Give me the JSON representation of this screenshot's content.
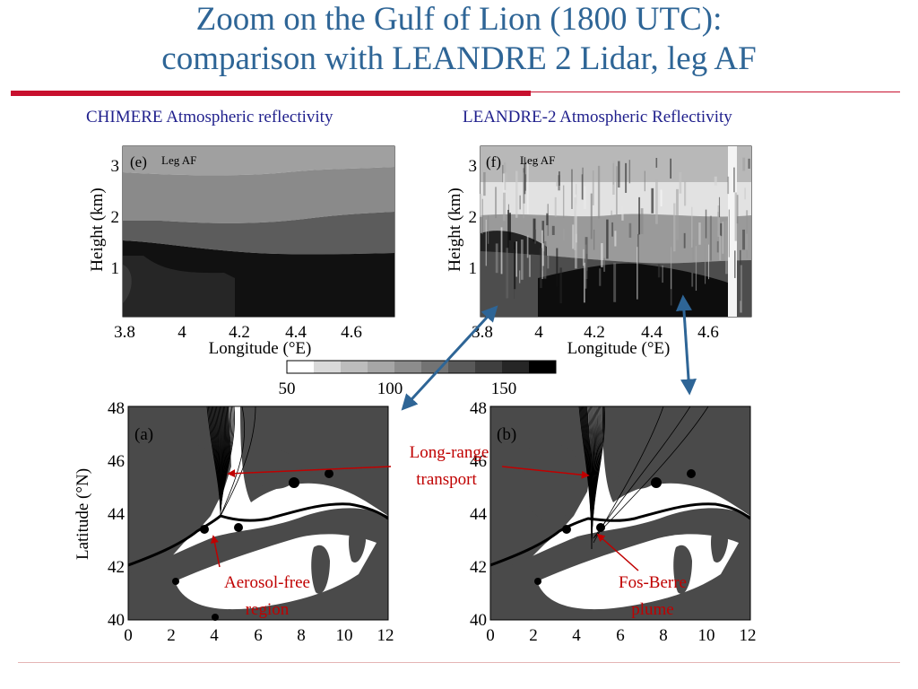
{
  "slide": {
    "title_line1": "Zoom on the Gulf of Lion (1800 UTC):",
    "title_line2": "comparison with LEANDRE 2 Lidar, leg AF"
  },
  "captions": {
    "left": "CHIMERE Atmospheric reflectivity",
    "right": "LEANDRE-2 Atmospheric Reflectivity"
  },
  "sections": {
    "panel_e": {
      "label": "(e)",
      "leg": "Leg AF",
      "y_axis_label": "Height (km)",
      "y_ticks": [
        "1",
        "2",
        "3"
      ],
      "x_axis_label": "Longitude (°E)",
      "x_ticks": [
        "3.8",
        "4",
        "4.2",
        "4.4",
        "4.6"
      ]
    },
    "panel_f": {
      "label": "(f)",
      "leg": "Leg AF",
      "y_axis_label": "Height (km)",
      "y_ticks": [
        "1",
        "2",
        "3"
      ],
      "x_axis_label": "Longitude (°E)",
      "x_ticks": [
        "3.8",
        "4",
        "4.2",
        "4.4",
        "4.6"
      ]
    },
    "colorbar": {
      "tick_labels": [
        "50",
        "100",
        "150"
      ],
      "shades": [
        "#ffffff",
        "#d9d9d9",
        "#bdbdbd",
        "#a6a6a6",
        "#8c8c8c",
        "#737373",
        "#595959",
        "#3f3f3f",
        "#262626",
        "#000000"
      ]
    },
    "panel_a": {
      "label": "(a)",
      "y_axis_label": "Latitude (°N)",
      "y_ticks": [
        "40",
        "42",
        "44",
        "46",
        "48"
      ],
      "x_ticks": [
        "0",
        "2",
        "4",
        "6",
        "8",
        "10",
        "12"
      ]
    },
    "panel_b": {
      "label": "(b)",
      "y_ticks": [
        "40",
        "42",
        "44",
        "46",
        "48"
      ],
      "x_ticks": [
        "0",
        "2",
        "4",
        "6",
        "8",
        "10",
        "12"
      ]
    }
  },
  "annotations": {
    "long_range_1": "Long-range",
    "long_range_2": "transport",
    "aerosol_1": "Aerosol-free",
    "aerosol_2": "region",
    "fos_1": "Fos-Berre",
    "fos_2": "plume"
  },
  "colors": {
    "title": "#2e6596",
    "accent_red": "#c8102e",
    "caption": "#1f1f8c",
    "arrow_blue": "#2e6596",
    "note_red": "#c00000"
  }
}
